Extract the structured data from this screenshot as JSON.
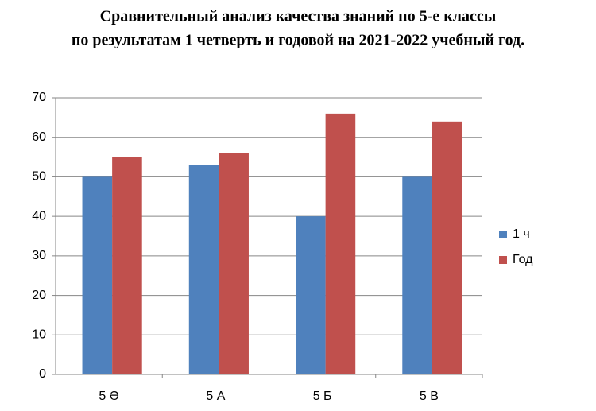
{
  "chart_data": {
    "type": "bar",
    "title": [
      "Сравнительный анализ качества знаний по 5-е классы",
      "по результатам 1 четверть и годовой на  2021-2022 учебный год."
    ],
    "categories": [
      "5 Ә",
      "5 А",
      "5 Б",
      "5 В"
    ],
    "series": [
      {
        "name": "1 ч",
        "color": "#4f81bd",
        "values": [
          50,
          53,
          40,
          50
        ]
      },
      {
        "name": "Год",
        "color": "#c0504d",
        "values": [
          55,
          56,
          66,
          64
        ]
      }
    ],
    "ylim": [
      0,
      70
    ],
    "yticks": [
      0,
      10,
      20,
      30,
      40,
      50,
      60,
      70
    ],
    "grid": true,
    "legend": "right"
  }
}
